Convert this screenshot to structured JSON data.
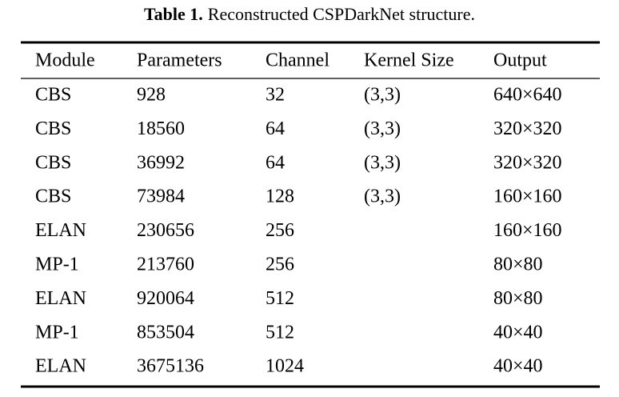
{
  "caption": {
    "label": "Table 1.",
    "text": "Reconstructed CSPDarkNet structure."
  },
  "table": {
    "columns": [
      "Module",
      "Parameters",
      "Channel",
      "Kernel Size",
      "Output"
    ],
    "rows": [
      [
        "CBS",
        928,
        32,
        "(3,3)",
        "640×640"
      ],
      [
        "CBS",
        18560,
        64,
        "(3,3)",
        "320×320"
      ],
      [
        "CBS",
        36992,
        64,
        "(3,3)",
        "320×320"
      ],
      [
        "CBS",
        73984,
        128,
        "(3,3)",
        "160×160"
      ],
      [
        "ELAN",
        230656,
        256,
        null,
        "160×160"
      ],
      [
        "MP-1",
        213760,
        256,
        null,
        "80×80"
      ],
      [
        "ELAN",
        920064,
        512,
        null,
        "80×80"
      ],
      [
        "MP-1",
        853504,
        512,
        null,
        "40×40"
      ],
      [
        "ELAN",
        3675136,
        1024,
        null,
        "40×40"
      ]
    ]
  }
}
